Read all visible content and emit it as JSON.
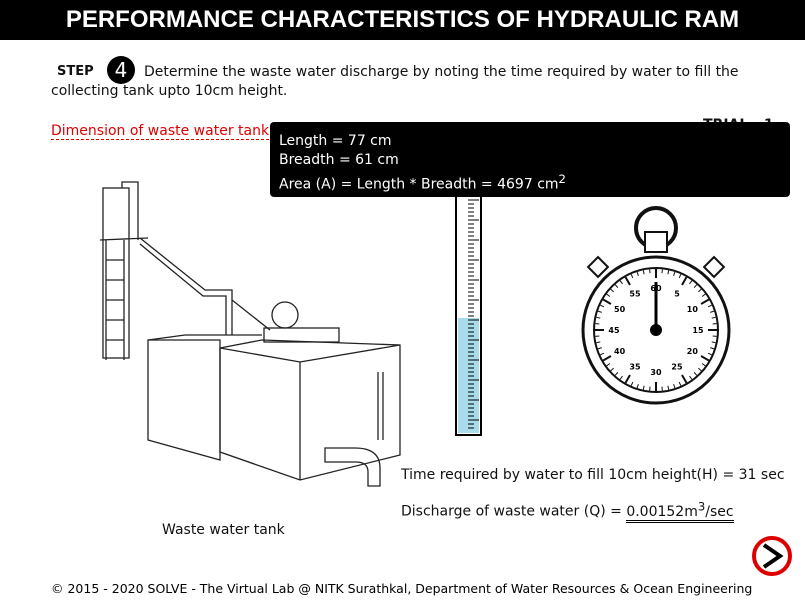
{
  "header": {
    "title": "PERFORMANCE CHARACTERISTICS OF HYDRAULIC RAM"
  },
  "step": {
    "label": "STEP",
    "number": "4",
    "text": "Determine the waste water discharge by noting the time required by water to fill the collecting tank upto 10cm height."
  },
  "dimension_link": "Dimension of waste water tank",
  "trial": "TRIAL - 1",
  "tooltip": {
    "length": "Length = 77 cm",
    "breadth": "Breadth = 61 cm",
    "area": "Area (A) = Length * Breadth = 4697 cm",
    "area_sup": "2"
  },
  "stopwatch": {
    "labels": [
      "60",
      "5",
      "10",
      "15",
      "20",
      "25",
      "30",
      "35",
      "40",
      "45",
      "50",
      "55"
    ]
  },
  "time_text": "Time required by water to fill 10cm height(H) = 31 sec",
  "discharge": {
    "label": "Discharge of waste water (Q) =",
    "value": "0.00152m",
    "sup": "3",
    "unit": "/sec"
  },
  "tank_caption": "Waste water tank",
  "footer": "© 2015 - 2020 SOLVE - The Virtual Lab @ NITK Surathkal, Department of Water Resources & Ocean Engineering"
}
